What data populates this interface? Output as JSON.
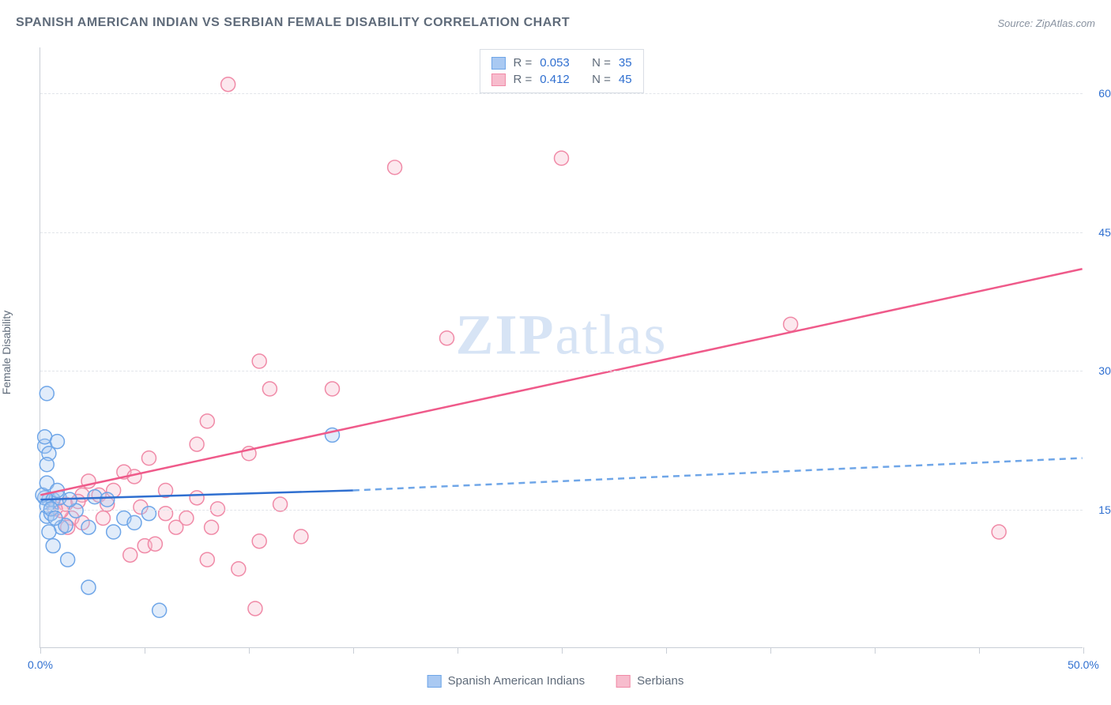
{
  "title": "SPANISH AMERICAN INDIAN VS SERBIAN FEMALE DISABILITY CORRELATION CHART",
  "source": "Source: ZipAtlas.com",
  "y_axis_label": "Female Disability",
  "watermark": {
    "zip": "ZIP",
    "atlas": "atlas"
  },
  "chart": {
    "type": "scatter",
    "background_color": "#ffffff",
    "grid_color": "#e2e5ea",
    "axis_color": "#c9ced6",
    "text_color": "#5f6b7a",
    "value_color": "#2f6fd0",
    "xlim": [
      0,
      50
    ],
    "ylim": [
      0,
      65
    ],
    "x_ticks": [
      0,
      5,
      10,
      15,
      20,
      25,
      30,
      35,
      40,
      45,
      50
    ],
    "x_tick_labels": {
      "0": "0.0%",
      "50": "50.0%"
    },
    "y_ticks": [
      15,
      30,
      45,
      60
    ],
    "y_tick_labels": [
      "15.0%",
      "30.0%",
      "45.0%",
      "60.0%"
    ],
    "marker_radius": 9,
    "marker_stroke_width": 1.5,
    "marker_fill_opacity": 0.35,
    "trend_line_width": 2.5,
    "series": [
      {
        "key": "spanish_american_indians",
        "label": "Spanish American Indians",
        "color_stroke": "#6fa6e8",
        "color_fill": "#a9c9f2",
        "r_value": "0.053",
        "n_value": "35",
        "trend": {
          "x1": 0,
          "y1": 16.0,
          "x2": 15,
          "y2": 17.0,
          "dash_extend_to_x": 50,
          "dash_extend_to_y": 20.5
        },
        "points": [
          [
            0.3,
            27.5
          ],
          [
            0.2,
            21.8
          ],
          [
            0.4,
            21.0
          ],
          [
            0.2,
            22.8
          ],
          [
            0.8,
            22.3
          ],
          [
            0.3,
            19.8
          ],
          [
            0.4,
            16.0
          ],
          [
            0.2,
            16.2
          ],
          [
            0.3,
            14.2
          ],
          [
            0.5,
            14.5
          ],
          [
            1.0,
            13.0
          ],
          [
            1.2,
            13.2
          ],
          [
            0.6,
            11.0
          ],
          [
            1.3,
            9.5
          ],
          [
            2.3,
            6.5
          ],
          [
            1.7,
            14.8
          ],
          [
            2.6,
            16.3
          ],
          [
            3.2,
            16.0
          ],
          [
            2.3,
            13.0
          ],
          [
            3.5,
            12.5
          ],
          [
            4.0,
            14.0
          ],
          [
            4.5,
            13.5
          ],
          [
            5.7,
            4.0
          ],
          [
            5.2,
            14.5
          ],
          [
            14.0,
            23.0
          ],
          [
            0.1,
            16.5
          ],
          [
            0.6,
            16.0
          ],
          [
            0.9,
            16.2
          ],
          [
            0.3,
            15.3
          ],
          [
            0.5,
            15.0
          ],
          [
            1.4,
            16.0
          ],
          [
            0.7,
            14.0
          ],
          [
            0.4,
            12.5
          ],
          [
            0.3,
            17.8
          ],
          [
            0.8,
            17.0
          ]
        ]
      },
      {
        "key": "serbians",
        "label": "Serbians",
        "color_stroke": "#f08aa7",
        "color_fill": "#f7bccd",
        "r_value": "0.412",
        "n_value": "45",
        "trend": {
          "x1": 0,
          "y1": 16.5,
          "x2": 50,
          "y2": 41.0
        },
        "points": [
          [
            9.0,
            61.0
          ],
          [
            17.0,
            52.0
          ],
          [
            25.0,
            53.0
          ],
          [
            19.5,
            33.5
          ],
          [
            36.0,
            35.0
          ],
          [
            46.0,
            12.5
          ],
          [
            10.5,
            31.0
          ],
          [
            11.0,
            28.0
          ],
          [
            14.0,
            28.0
          ],
          [
            8.0,
            24.5
          ],
          [
            7.5,
            22.0
          ],
          [
            5.2,
            20.5
          ],
          [
            4.0,
            19.0
          ],
          [
            10.0,
            21.0
          ],
          [
            10.3,
            4.2
          ],
          [
            12.5,
            12.0
          ],
          [
            6.5,
            13.0
          ],
          [
            9.5,
            8.5
          ],
          [
            8.0,
            9.5
          ],
          [
            5.0,
            11.0
          ],
          [
            6.0,
            14.5
          ],
          [
            7.0,
            14.0
          ],
          [
            8.5,
            15.0
          ],
          [
            4.8,
            15.2
          ],
          [
            4.3,
            10.0
          ],
          [
            3.0,
            14.0
          ],
          [
            2.0,
            16.5
          ],
          [
            1.5,
            14.0
          ],
          [
            2.3,
            18.0
          ],
          [
            1.0,
            14.8
          ],
          [
            1.2,
            15.5
          ],
          [
            1.8,
            15.8
          ],
          [
            0.7,
            15.0
          ],
          [
            2.8,
            16.5
          ],
          [
            3.5,
            17.0
          ],
          [
            10.5,
            11.5
          ],
          [
            5.5,
            11.2
          ],
          [
            11.5,
            15.5
          ],
          [
            6.0,
            17.0
          ],
          [
            7.5,
            16.2
          ],
          [
            8.2,
            13.0
          ],
          [
            3.2,
            15.5
          ],
          [
            4.5,
            18.5
          ],
          [
            2.0,
            13.5
          ],
          [
            1.3,
            13.0
          ]
        ]
      }
    ]
  },
  "top_legend": {
    "r_label": "R =",
    "n_label": "N ="
  }
}
